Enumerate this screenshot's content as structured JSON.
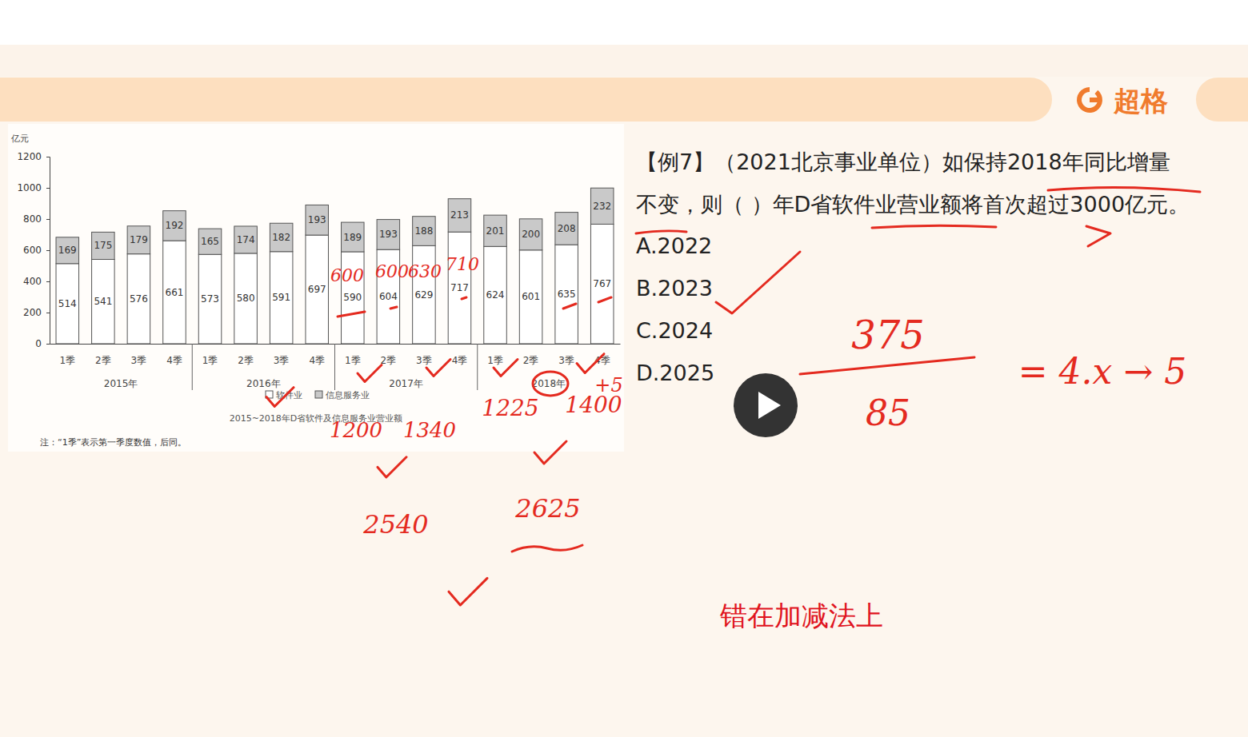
{
  "header": {
    "brand": "超格"
  },
  "chart_data": {
    "type": "bar",
    "stacked": true,
    "data_labels": true,
    "legend": "bottom",
    "y_label": "亿元",
    "title": "2015~2018年D省软件及信息服务业营业额",
    "note": "注：“1季”表示第一季度数值，后同。",
    "categories": [
      "1季",
      "2季",
      "3季",
      "4季",
      "1季",
      "2季",
      "3季",
      "4季",
      "1季",
      "2季",
      "3季",
      "4季",
      "1季",
      "2季",
      "3季",
      "4季"
    ],
    "year_labels": [
      "2015年",
      "2016年",
      "2017年",
      "2018年"
    ],
    "series": [
      {
        "name": "软件业",
        "color": "#ffffff",
        "values": [
          514,
          541,
          576,
          661,
          573,
          580,
          591,
          697,
          590,
          604,
          629,
          717,
          624,
          601,
          635,
          767
        ]
      },
      {
        "name": "信息服务业",
        "color": "#c9c9c9",
        "values": [
          169,
          175,
          179,
          192,
          165,
          174,
          182,
          193,
          189,
          193,
          188,
          213,
          201,
          200,
          208,
          232
        ]
      }
    ],
    "ylim": [
      0,
      1200
    ],
    "yticks": [
      0,
      200,
      400,
      600,
      800,
      1000,
      1200
    ]
  },
  "question": {
    "lines": [
      "【例7】（2021北京事业单位）如保持2018年同比增量",
      "不变，则（ ）年D省软件业营业额将首次超过3000亿元。"
    ],
    "options": [
      "A.2022",
      "B.2023",
      "C.2024",
      "D.2025"
    ]
  },
  "annotations": {
    "handwriting": [
      "600",
      "600",
      "630",
      "710",
      "+5",
      "1225",
      "1400",
      "1200",
      "1340",
      "2540",
      "2625",
      "375",
      "85",
      "= 4.x → 5"
    ],
    "caption": "错在加减法上"
  }
}
